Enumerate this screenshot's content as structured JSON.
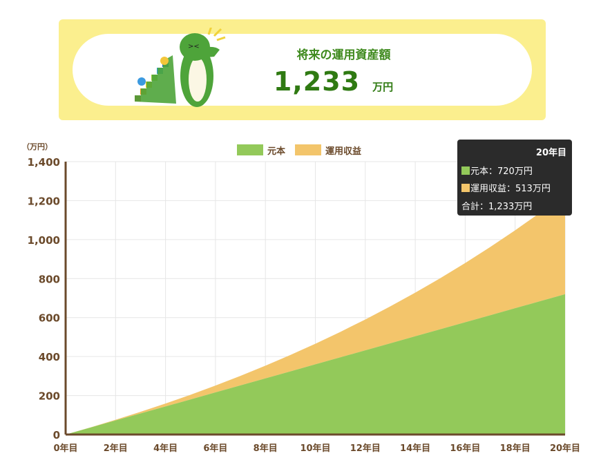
{
  "header": {
    "title": "将来の運用資産額",
    "amount": "1,233",
    "unit": "万円"
  },
  "colors": {
    "principal": "#93c95a",
    "profit": "#f3c56b",
    "axis": "#6b4a2b",
    "text": "#6b4a2b",
    "grid": "#e6e6e6"
  },
  "chart_data": {
    "type": "area",
    "stacked": true,
    "yunit": "（万円）",
    "ylim": [
      0,
      1400
    ],
    "yticks": [
      0,
      200,
      400,
      600,
      800,
      1000,
      1200,
      1400
    ],
    "ytick_labels": [
      "0",
      "200",
      "400",
      "600",
      "800",
      "1,000",
      "1,200",
      "1,400"
    ],
    "x": [
      0,
      1,
      2,
      3,
      4,
      5,
      6,
      7,
      8,
      9,
      10,
      11,
      12,
      13,
      14,
      15,
      16,
      17,
      18,
      19,
      20
    ],
    "xtick_labels": [
      "0年目",
      "2年目",
      "4年目",
      "6年目",
      "8年目",
      "10年目",
      "12年目",
      "14年目",
      "16年目",
      "18年目",
      "20年目"
    ],
    "grid": true,
    "legend_placement": "top",
    "series": [
      {
        "name": "元本",
        "values": [
          0,
          36,
          72,
          108,
          144,
          180,
          216,
          252,
          288,
          324,
          360,
          396,
          432,
          468,
          504,
          540,
          576,
          612,
          648,
          684,
          720
        ]
      },
      {
        "name": "運用収益",
        "values": [
          0,
          0.8,
          3.6,
          8.3,
          15,
          24,
          35.3,
          49,
          65.3,
          84.2,
          105.8,
          130.5,
          158.3,
          189.4,
          223.8,
          261.9,
          303.9,
          349.8,
          399.8,
          454.3,
          513
        ]
      }
    ]
  },
  "tooltip": {
    "title": "20年目",
    "principal": "元本：720万円",
    "profit": "運用収益：513万円",
    "total": "合計：1,233万円"
  }
}
